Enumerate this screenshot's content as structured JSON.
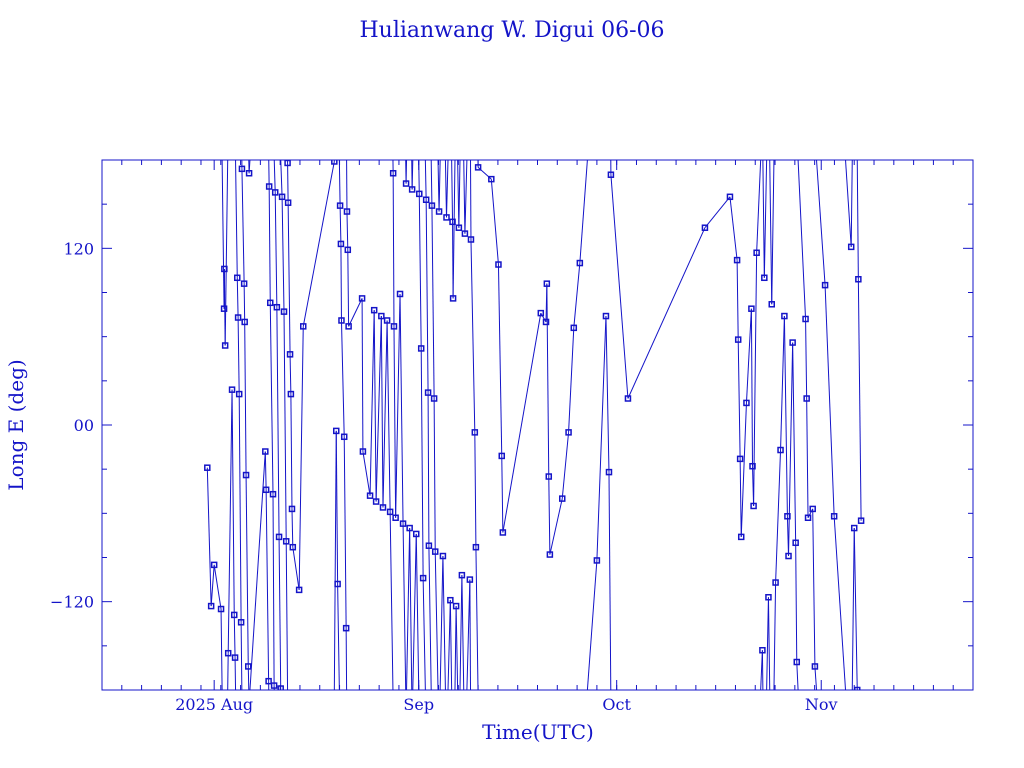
{
  "chart_data": {
    "type": "line",
    "title": "Hulianwang W. Digui 06-06",
    "xlabel": "Time(UTC)",
    "ylabel": "Long E (deg)",
    "xlim": [
      "2025-07-15T00:00",
      "2025-11-24T00:00"
    ],
    "ylim": [
      -180,
      180
    ],
    "yticks": [
      {
        "value": 120,
        "label": "120"
      },
      {
        "value": 0,
        "label": "00"
      },
      {
        "value": -120,
        "label": "-120"
      }
    ],
    "xticks": [
      {
        "value": "2025-08-01T00:00",
        "label": "2025 Aug"
      },
      {
        "value": "2025-09-01T00:00",
        "label": "Sep"
      },
      {
        "value": "2025-10-01T00:00",
        "label": "Oct"
      },
      {
        "value": "2025-11-01T00:00",
        "label": "Nov"
      }
    ],
    "grid": false,
    "marker": "square",
    "color": "#1414c8",
    "points": [
      [
        "2025-07-30T23:00",
        -29
      ],
      [
        "2025-07-31T13:00",
        -123
      ],
      [
        "2025-08-01T00:00",
        -95
      ],
      [
        "2025-08-02T01:00",
        -125
      ],
      [
        "2025-08-02T12:00",
        79
      ],
      [
        "2025-08-02T13:00",
        106
      ],
      [
        "2025-08-02T16:00",
        54
      ],
      [
        "2025-08-03T03:00",
        -155
      ],
      [
        "2025-08-03T17:00",
        24
      ],
      [
        "2025-08-04T01:00",
        -129
      ],
      [
        "2025-08-04T04:00",
        -158
      ],
      [
        "2025-08-04T12:00",
        100
      ],
      [
        "2025-08-04T15:00",
        73
      ],
      [
        "2025-08-04T19:00",
        21
      ],
      [
        "2025-08-05T02:00",
        -134
      ],
      [
        "2025-08-05T05:00",
        174
      ],
      [
        "2025-08-05T13:00",
        96
      ],
      [
        "2025-08-05T15:00",
        70
      ],
      [
        "2025-08-05T20:00",
        -34
      ],
      [
        "2025-08-06T04:00",
        -164
      ],
      [
        "2025-08-06T07:00",
        171
      ],
      [
        "2025-08-08T18:00",
        -18
      ],
      [
        "2025-08-08T21:00",
        -44
      ],
      [
        "2025-08-09T06:00",
        -174
      ],
      [
        "2025-08-09T08:00",
        162
      ],
      [
        "2025-08-09T12:00",
        83
      ],
      [
        "2025-08-09T22:00",
        -47
      ],
      [
        "2025-08-10T02:00",
        -177
      ],
      [
        "2025-08-10T06:00",
        158
      ],
      [
        "2025-08-10T12:00",
        80
      ],
      [
        "2025-08-10T20:00",
        -76
      ],
      [
        "2025-08-11T02:00",
        -179
      ],
      [
        "2025-08-11T07:00",
        155
      ],
      [
        "2025-08-11T14:00",
        77
      ],
      [
        "2025-08-11T22:00",
        -79
      ],
      [
        "2025-08-12T03:00",
        178
      ],
      [
        "2025-08-12T05:00",
        151
      ],
      [
        "2025-08-12T12:00",
        48
      ],
      [
        "2025-08-12T15:00",
        21
      ],
      [
        "2025-08-12T19:00",
        -57
      ],
      [
        "2025-08-12T22:00",
        -83
      ],
      [
        "2025-08-13T21:00",
        -112
      ],
      [
        "2025-08-14T12:00",
        67
      ],
      [
        "2025-08-19T05:00",
        179
      ],
      [
        "2025-08-19T12:00",
        -4
      ],
      [
        "2025-08-19T17:00",
        -108
      ],
      [
        "2025-08-20T02:00",
        149
      ],
      [
        "2025-08-20T05:00",
        123
      ],
      [
        "2025-08-20T07:00",
        71
      ],
      [
        "2025-08-20T17:00",
        -8
      ],
      [
        "2025-08-21T00:00",
        -138
      ],
      [
        "2025-08-21T03:00",
        145
      ],
      [
        "2025-08-21T06:00",
        119
      ],
      [
        "2025-08-21T09:00",
        67
      ],
      [
        "2025-08-23T10:00",
        86
      ],
      [
        "2025-08-23T13:00",
        -18
      ],
      [
        "2025-08-24T15:00",
        -48
      ],
      [
        "2025-08-25T06:00",
        78
      ],
      [
        "2025-08-25T13:00",
        -52
      ],
      [
        "2025-08-26T08:00",
        74
      ],
      [
        "2025-08-26T14:00",
        -56
      ],
      [
        "2025-08-27T05:00",
        71
      ],
      [
        "2025-08-27T16:00",
        -59
      ],
      [
        "2025-08-28T03:00",
        171
      ],
      [
        "2025-08-28T06:00",
        67
      ],
      [
        "2025-08-28T12:00",
        -63
      ],
      [
        "2025-08-29T04:00",
        89
      ],
      [
        "2025-08-29T15:00",
        -67
      ],
      [
        "2025-08-30T02:00",
        164
      ],
      [
        "2025-08-30T15:00",
        -70
      ],
      [
        "2025-08-31T00:00",
        160
      ],
      [
        "2025-08-31T15:00",
        -74
      ],
      [
        "2025-09-01T02:00",
        157
      ],
      [
        "2025-09-01T09:00",
        52
      ],
      [
        "2025-09-01T16:00",
        -104
      ],
      [
        "2025-09-02T03:00",
        153
      ],
      [
        "2025-09-02T10:00",
        22
      ],
      [
        "2025-09-02T13:00",
        -82
      ],
      [
        "2025-09-03T00:00",
        149
      ],
      [
        "2025-09-03T08:00",
        18
      ],
      [
        "2025-09-03T12:00",
        -86
      ],
      [
        "2025-09-04T02:00",
        145
      ],
      [
        "2025-09-04T16:00",
        -89
      ],
      [
        "2025-09-05T05:00",
        141
      ],
      [
        "2025-09-05T19:00",
        -119
      ],
      [
        "2025-09-06T03:00",
        138
      ],
      [
        "2025-09-06T05:00",
        86
      ],
      [
        "2025-09-06T16:00",
        -123
      ],
      [
        "2025-09-07T02:00",
        134
      ],
      [
        "2025-09-07T13:00",
        -102
      ],
      [
        "2025-09-08T00:00",
        130
      ],
      [
        "2025-09-08T18:00",
        -105
      ],
      [
        "2025-09-08T22:00",
        126
      ],
      [
        "2025-09-09T12:00",
        -5
      ],
      [
        "2025-09-09T16:00",
        -83
      ],
      [
        "2025-09-10T00:00",
        175
      ],
      [
        "2025-09-12T00:00",
        167
      ],
      [
        "2025-09-13T02:00",
        109
      ],
      [
        "2025-09-13T14:00",
        -21
      ],
      [
        "2025-09-13T18:00",
        -73
      ],
      [
        "2025-09-19T12:00",
        76
      ],
      [
        "2025-09-20T07:00",
        70
      ],
      [
        "2025-09-20T10:00",
        96
      ],
      [
        "2025-09-20T17:00",
        -35
      ],
      [
        "2025-09-20T21:00",
        -88
      ],
      [
        "2025-09-22T18:00",
        -50
      ],
      [
        "2025-09-23T17:00",
        -5
      ],
      [
        "2025-09-24T12:00",
        66
      ],
      [
        "2025-09-25T10:00",
        110
      ],
      [
        "2025-09-28T00:00",
        -92
      ],
      [
        "2025-09-29T09:00",
        74
      ],
      [
        "2025-09-29T20:00",
        -32
      ],
      [
        "2025-09-30T03:00",
        170
      ],
      [
        "2025-10-02T17:00",
        18
      ],
      [
        "2025-10-14T09:00",
        134
      ],
      [
        "2025-10-18T04:00",
        155
      ],
      [
        "2025-10-19T06:00",
        112
      ],
      [
        "2025-10-19T10:00",
        58
      ],
      [
        "2025-10-19T17:00",
        -23
      ],
      [
        "2025-10-19T21:00",
        -76
      ],
      [
        "2025-10-20T16:00",
        15
      ],
      [
        "2025-10-21T10:00",
        79
      ],
      [
        "2025-10-21T14:00",
        -28
      ],
      [
        "2025-10-21T18:00",
        -55
      ],
      [
        "2025-10-22T05:00",
        117
      ],
      [
        "2025-10-23T02:00",
        -153
      ],
      [
        "2025-10-23T09:00",
        100
      ],
      [
        "2025-10-24T00:00",
        -117
      ],
      [
        "2025-10-24T12:00",
        82
      ],
      [
        "2025-10-25T02:00",
        -107
      ],
      [
        "2025-10-25T20:00",
        -17
      ],
      [
        "2025-10-26T10:00",
        74
      ],
      [
        "2025-10-26T21:00",
        -62
      ],
      [
        "2025-10-27T01:00",
        -89
      ],
      [
        "2025-10-27T16:00",
        56
      ],
      [
        "2025-10-28T03:00",
        -80
      ],
      [
        "2025-10-28T07:00",
        -161
      ],
      [
        "2025-10-29T15:00",
        72
      ],
      [
        "2025-10-29T19:00",
        18
      ],
      [
        "2025-10-30T00:00",
        -63
      ],
      [
        "2025-10-30T17:00",
        -57
      ],
      [
        "2025-10-31T01:00",
        -164
      ],
      [
        "2025-11-01T14:00",
        95
      ],
      [
        "2025-11-02T23:00",
        -62
      ],
      [
        "2025-11-05T13:00",
        121
      ],
      [
        "2025-11-06T00:00",
        -70
      ],
      [
        "2025-11-06T11:00",
        -180
      ],
      [
        "2025-11-06T15:00",
        99
      ],
      [
        "2025-11-07T01:00",
        -65
      ]
    ]
  }
}
